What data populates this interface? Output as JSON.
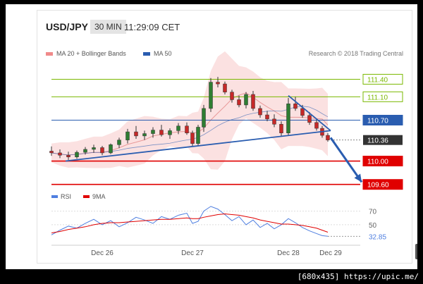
{
  "header": {
    "pair": "USD/JPY",
    "timeframe": "30 MIN",
    "time": "11:29:09 CET"
  },
  "legend": [
    {
      "label": "MA 20 + Bollinger Bands",
      "color": "#f08a8a"
    },
    {
      "label": "MA 50",
      "color": "#2a5db0"
    }
  ],
  "credit": "Research © 2018 Trading Central",
  "footer": "[680x435] https://upic.me/",
  "download_icon": "download-arrow-icon",
  "chart_data": [
    {
      "type": "candlestick",
      "x_tick_labels": [
        "Dec 26",
        "Dec 27",
        "Dec 28",
        "Dec 29"
      ],
      "ylim": [
        109.5,
        111.55
      ],
      "price_levels": [
        {
          "value": 111.4,
          "label": "111.40",
          "color": "#7ab800"
        },
        {
          "value": 111.1,
          "label": "111.10",
          "color": "#7ab800"
        },
        {
          "value": 110.7,
          "label": "110.70",
          "color": "#2a5db0"
        },
        {
          "value": 110.0,
          "label": "110.00",
          "color": "#e00000"
        },
        {
          "value": 109.6,
          "label": "109.60",
          "color": "#e00000"
        }
      ],
      "current_price": {
        "value": 110.36,
        "label": "110.36",
        "color": "#333333"
      },
      "candles": [
        [
          0.0,
          110.17,
          110.25,
          110.09,
          110.14
        ],
        [
          0.03,
          110.14,
          110.2,
          110.05,
          110.1
        ],
        [
          0.06,
          110.1,
          110.16,
          110.02,
          110.07
        ],
        [
          0.09,
          110.07,
          110.18,
          110.04,
          110.15
        ],
        [
          0.12,
          110.15,
          110.24,
          110.11,
          110.2
        ],
        [
          0.15,
          110.2,
          110.28,
          110.14,
          110.23
        ],
        [
          0.18,
          110.23,
          110.26,
          110.1,
          110.14
        ],
        [
          0.21,
          110.14,
          110.3,
          110.12,
          110.28
        ],
        [
          0.24,
          110.28,
          110.4,
          110.22,
          110.36
        ],
        [
          0.27,
          110.36,
          110.55,
          110.3,
          110.5
        ],
        [
          0.3,
          110.5,
          110.6,
          110.38,
          110.43
        ],
        [
          0.33,
          110.43,
          110.52,
          110.36,
          110.47
        ],
        [
          0.36,
          110.47,
          110.58,
          110.4,
          110.53
        ],
        [
          0.39,
          110.53,
          110.62,
          110.42,
          110.45
        ],
        [
          0.42,
          110.45,
          110.56,
          110.38,
          110.52
        ],
        [
          0.45,
          110.52,
          110.65,
          110.46,
          110.6
        ],
        [
          0.48,
          110.6,
          110.66,
          110.45,
          110.48
        ],
        [
          0.5,
          110.48,
          110.52,
          110.25,
          110.3
        ],
        [
          0.52,
          110.3,
          110.62,
          110.26,
          110.58
        ],
        [
          0.54,
          110.58,
          110.96,
          110.5,
          110.9
        ],
        [
          0.565,
          110.9,
          111.42,
          110.84,
          111.35
        ],
        [
          0.59,
          111.35,
          111.44,
          111.26,
          111.32
        ],
        [
          0.615,
          111.32,
          111.36,
          111.14,
          111.18
        ],
        [
          0.64,
          111.18,
          111.22,
          111.0,
          111.05
        ],
        [
          0.665,
          111.05,
          111.12,
          110.92,
          110.96
        ],
        [
          0.69,
          110.96,
          111.18,
          110.9,
          111.14
        ],
        [
          0.715,
          111.14,
          111.2,
          110.86,
          110.9
        ],
        [
          0.74,
          110.9,
          110.95,
          110.74,
          110.79
        ],
        [
          0.765,
          110.79,
          110.86,
          110.68,
          110.72
        ],
        [
          0.79,
          110.72,
          110.8,
          110.58,
          110.63
        ],
        [
          0.815,
          110.63,
          110.68,
          110.42,
          110.48
        ],
        [
          0.84,
          110.48,
          111.08,
          110.44,
          110.98
        ],
        [
          0.865,
          110.98,
          111.1,
          110.86,
          110.9
        ],
        [
          0.89,
          110.9,
          110.96,
          110.74,
          110.78
        ],
        [
          0.915,
          110.78,
          110.84,
          110.62,
          110.66
        ],
        [
          0.94,
          110.66,
          110.72,
          110.52,
          110.56
        ],
        [
          0.96,
          110.56,
          110.6,
          110.4,
          110.44
        ],
        [
          0.98,
          110.44,
          110.48,
          110.33,
          110.36
        ]
      ],
      "trendlines": [
        {
          "from": [
            0.05,
            110.0
          ],
          "to": [
            0.99,
            110.52
          ],
          "color": "#2a5db0"
        },
        {
          "from": [
            0.84,
            111.12
          ],
          "to": [
            0.99,
            110.52
          ],
          "color": "#2a5db0"
        }
      ],
      "forecast_arrow": {
        "from": [
          0.99,
          110.4
        ],
        "to": [
          1.1,
          109.64
        ],
        "color": "#2a5db0"
      }
    },
    {
      "type": "line",
      "legend": [
        {
          "label": "RSI",
          "color": "#4f7fe0"
        },
        {
          "label": "9MA",
          "color": "#e00000"
        }
      ],
      "levels": [
        {
          "value": 70,
          "label": "70"
        },
        {
          "value": 50,
          "label": "50"
        }
      ],
      "current_value": {
        "value": 32.85,
        "label": "32.85"
      },
      "ylim": [
        25,
        80
      ],
      "series": [
        {
          "name": "RSI",
          "values": [
            35,
            42,
            48,
            45,
            52,
            58,
            50,
            56,
            47,
            53,
            61,
            57,
            52,
            62,
            58,
            64,
            67,
            52,
            55,
            70,
            77,
            73,
            65,
            56,
            62,
            50,
            57,
            46,
            52,
            44,
            50,
            59,
            53,
            46,
            41,
            37,
            34,
            33
          ]
        },
        {
          "name": "9MA",
          "values": [
            38,
            40,
            43,
            45,
            47,
            50,
            52,
            53,
            53,
            54,
            55,
            56,
            57,
            58,
            58,
            59,
            60,
            59,
            59,
            61,
            63,
            65,
            66,
            65,
            64,
            62,
            60,
            57,
            55,
            53,
            51,
            51,
            50,
            49,
            47,
            45,
            42,
            39
          ]
        }
      ]
    }
  ]
}
